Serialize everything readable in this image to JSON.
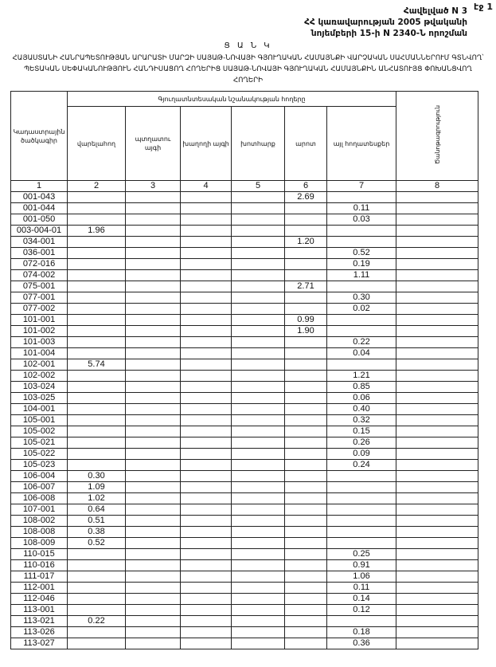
{
  "page_label": "էջ 1",
  "annex": [
    "Հավելված N 3",
    "ՀՀ կառավարության 2005 թվականի",
    "նոյեմբերի 15-ի N 2340-Ն որոշման"
  ],
  "list_label": "Ց Ա Ն Կ",
  "title": "ՀԱՅԱՍՏԱՆԻ ՀԱՆՐԱՊԵՏՈՒԹՅԱՆ ԱՐԱՐԱՏԻ ՄԱՐԶԻ ՍԱՅԱԹ-ՆՈՎԱՅԻ ԳՅՈՒՂԱԿԱՆ ՀԱՄԱՅՆՔԻ ՎԱՐՉԱԿԱՆ ՍԱՀՄԱՆՆԵՐՈՒՄ ԳՏՆՎՈՂ՝ ՊԵՏԱԿԱՆ ՍԵՓԱԿԱՆՈՒԹՅՈՒՆ ՀԱՆԴԻՍԱՑՈՂ ՀՈՂԵՐԻՑ ՍԱՅԱԹ-ՆՈՎԱՅԻ ԳՅՈՒՂԱԿԱՆ ՀԱՄԱՅՆՔԻՆ ԱՆՀԱՏՈՒՅՑ ՓՈԽԱՆՑՎՈՂ ՀՈՂԵՐԻ",
  "table": {
    "col_code": "Կադաստրային ծածկագիր",
    "group": "Գյուղատնտեսական նշանակության հողերը",
    "cols": [
      "վարելահող",
      "պտղատու այգի",
      "խաղողի այգի",
      "խոտհարք",
      "արոտ",
      "այլ հողատեսքեր"
    ],
    "col_note": "Ծանոթագրություն",
    "numbers": [
      "1",
      "2",
      "3",
      "4",
      "5",
      "6",
      "7",
      "8"
    ],
    "rows": [
      [
        "001-043",
        "",
        "",
        "",
        "",
        "2.69",
        "",
        ""
      ],
      [
        "001-044",
        "",
        "",
        "",
        "",
        "",
        "0.11",
        ""
      ],
      [
        "001-050",
        "",
        "",
        "",
        "",
        "",
        "0.03",
        ""
      ],
      [
        "003-004-01",
        "1.96",
        "",
        "",
        "",
        "",
        "",
        ""
      ],
      [
        "034-001",
        "",
        "",
        "",
        "",
        "1.20",
        "",
        ""
      ],
      [
        "036-001",
        "",
        "",
        "",
        "",
        "",
        "0.52",
        ""
      ],
      [
        "072-016",
        "",
        "",
        "",
        "",
        "",
        "0.19",
        ""
      ],
      [
        "074-002",
        "",
        "",
        "",
        "",
        "",
        "1.11",
        ""
      ],
      [
        "075-001",
        "",
        "",
        "",
        "",
        "2.71",
        "",
        ""
      ],
      [
        "077-001",
        "",
        "",
        "",
        "",
        "",
        "0.30",
        ""
      ],
      [
        "077-002",
        "",
        "",
        "",
        "",
        "",
        "0.02",
        ""
      ],
      [
        "101-001",
        "",
        "",
        "",
        "",
        "0.99",
        "",
        ""
      ],
      [
        "101-002",
        "",
        "",
        "",
        "",
        "1.90",
        "",
        ""
      ],
      [
        "101-003",
        "",
        "",
        "",
        "",
        "",
        "0.22",
        ""
      ],
      [
        "101-004",
        "",
        "",
        "",
        "",
        "",
        "0.04",
        ""
      ],
      [
        "102-001",
        "5.74",
        "",
        "",
        "",
        "",
        "",
        ""
      ],
      [
        "102-002",
        "",
        "",
        "",
        "",
        "",
        "1.21",
        ""
      ],
      [
        "103-024",
        "",
        "",
        "",
        "",
        "",
        "0.85",
        ""
      ],
      [
        "103-025",
        "",
        "",
        "",
        "",
        "",
        "0.06",
        ""
      ],
      [
        "104-001",
        "",
        "",
        "",
        "",
        "",
        "0.40",
        ""
      ],
      [
        "105-001",
        "",
        "",
        "",
        "",
        "",
        "0.32",
        ""
      ],
      [
        "105-002",
        "",
        "",
        "",
        "",
        "",
        "0.15",
        ""
      ],
      [
        "105-021",
        "",
        "",
        "",
        "",
        "",
        "0.26",
        ""
      ],
      [
        "105-022",
        "",
        "",
        "",
        "",
        "",
        "0.09",
        ""
      ],
      [
        "105-023",
        "",
        "",
        "",
        "",
        "",
        "0.24",
        ""
      ],
      [
        "106-004",
        "0.30",
        "",
        "",
        "",
        "",
        "",
        ""
      ],
      [
        "106-007",
        "1.09",
        "",
        "",
        "",
        "",
        "",
        ""
      ],
      [
        "106-008",
        "1.02",
        "",
        "",
        "",
        "",
        "",
        ""
      ],
      [
        "107-001",
        "0.64",
        "",
        "",
        "",
        "",
        "",
        ""
      ],
      [
        "108-002",
        "0.51",
        "",
        "",
        "",
        "",
        "",
        ""
      ],
      [
        "108-008",
        "0.38",
        "",
        "",
        "",
        "",
        "",
        ""
      ],
      [
        "108-009",
        "0.52",
        "",
        "",
        "",
        "",
        "",
        ""
      ],
      [
        "110-015",
        "",
        "",
        "",
        "",
        "",
        "0.25",
        ""
      ],
      [
        "110-016",
        "",
        "",
        "",
        "",
        "",
        "0.91",
        ""
      ],
      [
        "111-017",
        "",
        "",
        "",
        "",
        "",
        "1.06",
        ""
      ],
      [
        "112-001",
        "",
        "",
        "",
        "",
        "",
        "0.11",
        ""
      ],
      [
        "112-046",
        "",
        "",
        "",
        "",
        "",
        "0.14",
        ""
      ],
      [
        "113-001",
        "",
        "",
        "",
        "",
        "",
        "0.12",
        ""
      ],
      [
        "113-021",
        "0.22",
        "",
        "",
        "",
        "",
        "",
        ""
      ],
      [
        "113-026",
        "",
        "",
        "",
        "",
        "",
        "0.18",
        ""
      ],
      [
        "113-027",
        "",
        "",
        "",
        "",
        "",
        "0.36",
        ""
      ]
    ]
  }
}
